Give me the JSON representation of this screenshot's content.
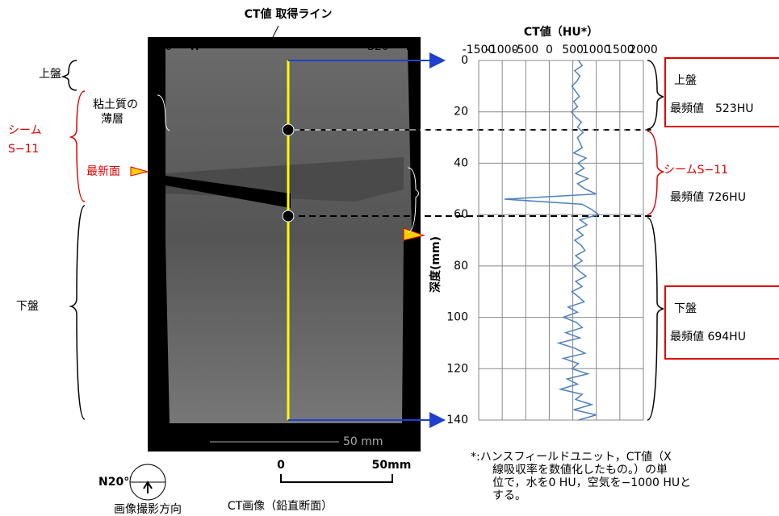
{
  "chart_data": {
    "type": "line",
    "title": "CT値（HU*）",
    "y_label": "深度(mm)",
    "xlim": [
      -1500,
      2000
    ],
    "xticks": [
      -1500,
      -1000,
      -500,
      0,
      500,
      1000,
      1500,
      2000
    ],
    "ylim": [
      0,
      140
    ],
    "yticks": [
      0,
      20,
      40,
      60,
      80,
      100,
      120,
      140
    ],
    "grid": true,
    "inverted_y": true,
    "x": [
      0,
      2,
      4,
      6,
      8,
      10,
      12,
      14,
      16,
      18,
      20,
      22,
      24,
      26,
      28,
      30,
      32,
      34,
      36,
      38,
      40,
      42,
      44,
      46,
      48,
      50,
      52,
      54,
      56,
      58,
      60,
      62,
      64,
      66,
      68,
      70,
      72,
      74,
      76,
      78,
      80,
      82,
      84,
      86,
      88,
      90,
      92,
      94,
      96,
      98,
      100,
      102,
      104,
      106,
      108,
      110,
      112,
      114,
      116,
      118,
      120,
      122,
      124,
      126,
      128,
      130,
      132,
      134,
      136,
      138,
      140
    ],
    "series": [
      {
        "color": "#4f81bd",
        "values": [
          620,
          700,
          540,
          650,
          590,
          480,
          560,
          640,
          520,
          600,
          470,
          560,
          680,
          600,
          720,
          600,
          650,
          700,
          520,
          780,
          610,
          740,
          560,
          820,
          600,
          760,
          1000,
          -950,
          700,
          900,
          1050,
          650,
          800,
          580,
          720,
          540,
          680,
          760,
          560,
          700,
          520,
          640,
          780,
          560,
          700,
          480,
          620,
          740,
          400,
          600,
          300,
          580,
          700,
          350,
          650,
          200,
          540,
          760,
          300,
          620,
          480,
          820,
          380,
          600,
          240,
          700,
          560,
          900,
          520,
          1000,
          620
        ]
      }
    ]
  },
  "image": {
    "title": "CT値 取得ライン",
    "left_dir": "N20°　W",
    "right_dir": "S20°　E",
    "scale": "50 mm",
    "caption": "CT画像（鉛直断面）",
    "scale_zero": "0",
    "scale_end": "50mm",
    "compass": "N20°W",
    "compass_caption": "画像撮影方向"
  },
  "left_labels": {
    "upper": "上盤",
    "clay1": "粘土質の",
    "clay2": "薄層",
    "seam1": "シーム",
    "seam2": "S−11",
    "newest": "最新面",
    "lower": "下盤"
  },
  "boxes": {
    "upper_title": "上盤",
    "upper_mode": "最頻値　523HU",
    "seam_title": "シームS−11",
    "seam_mode": "最頻値 726HU",
    "lower_title": "下盤",
    "lower_mode": "最頻値 694HU"
  },
  "footnote": [
    "*:ハンスフィールドユニット，CT値（X",
    "線吸収率を数値化したもの。）の単",
    "位で，水を0 HU，空気を−1000 HUと",
    "する。"
  ]
}
